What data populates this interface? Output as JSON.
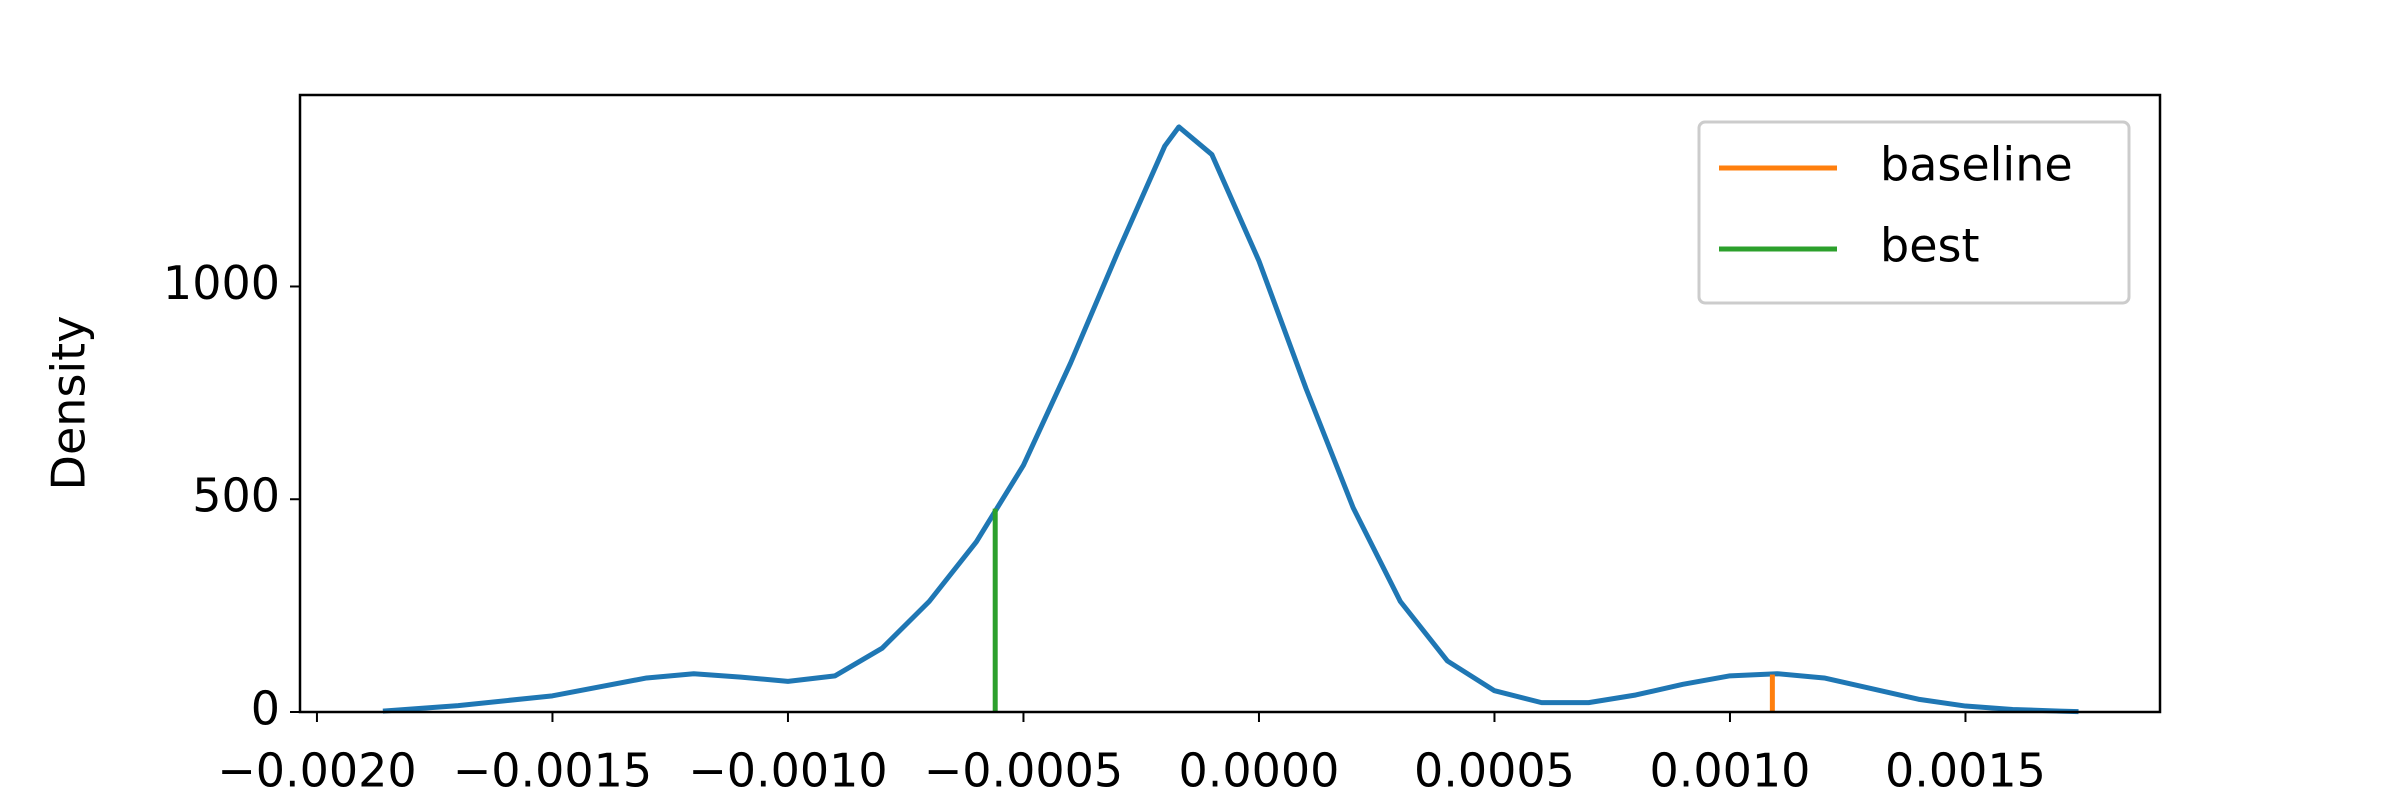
{
  "chart_data": {
    "type": "line",
    "ylabel": "Density",
    "xlim": [
      -0.002036,
      0.001913
    ],
    "ylim": [
      0,
      1450
    ],
    "xticks": [
      {
        "value": -0.002,
        "label": "−0.0020"
      },
      {
        "value": -0.0015,
        "label": "−0.0015"
      },
      {
        "value": -0.001,
        "label": "−0.0010"
      },
      {
        "value": -0.0005,
        "label": "−0.0005"
      },
      {
        "value": 0,
        "label": "0.0000"
      },
      {
        "value": 0.0005,
        "label": "0.0005"
      },
      {
        "value": 0.001,
        "label": "0.0010"
      },
      {
        "value": 0.0015,
        "label": "0.0015"
      }
    ],
    "yticks": [
      0,
      500,
      1000
    ],
    "series": [
      {
        "color": "#1f77b4",
        "x": [
          -0.00186,
          -0.0017,
          -0.0015,
          -0.0013,
          -0.0012,
          -0.0011,
          -0.001,
          -0.0009,
          -0.0008,
          -0.0007,
          -0.0006,
          -0.0005,
          -0.0004,
          -0.0003,
          -0.0002,
          -0.00017,
          -0.0001,
          0,
          0.0001,
          0.0002,
          0.0003,
          0.0004,
          0.0005,
          0.0006,
          0.0007,
          0.0008,
          0.0009,
          0.001,
          0.0011,
          0.0012,
          0.0013,
          0.0014,
          0.0015,
          0.0016,
          0.0017,
          0.00174
        ],
        "values": [
          2,
          15,
          38,
          80,
          90,
          82,
          72,
          85,
          150,
          260,
          400,
          580,
          820,
          1080,
          1330,
          1375,
          1310,
          1060,
          760,
          480,
          260,
          120,
          50,
          22,
          22,
          40,
          65,
          85,
          90,
          80,
          55,
          30,
          14,
          6,
          2,
          1
        ]
      }
    ],
    "vlines": [
      {
        "name": "baseline",
        "color": "#ff7f0e",
        "x": 0.00109,
        "value": 88
      },
      {
        "name": "best",
        "color": "#2ca02c",
        "x": -0.00056,
        "value": 478
      }
    ],
    "legend": "upper right"
  }
}
